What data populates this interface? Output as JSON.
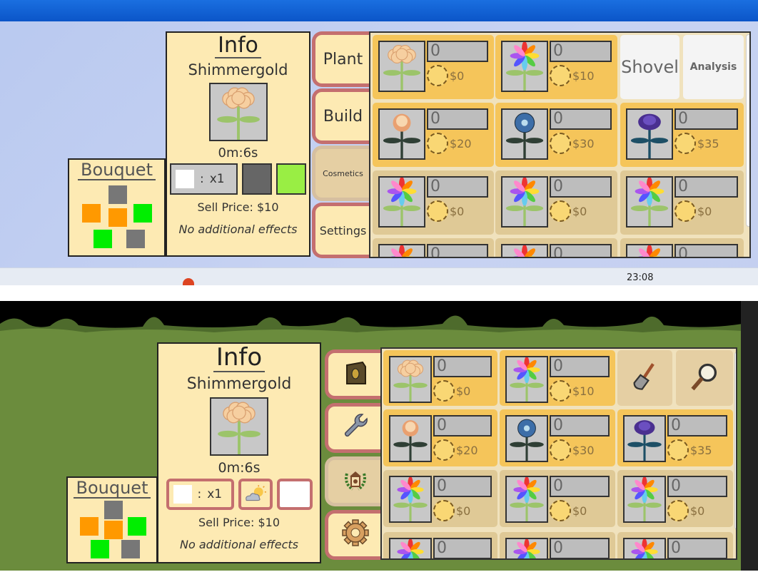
{
  "taskbar": {
    "clock": "23:08"
  },
  "panels": [
    {
      "variant": "old",
      "bouquet": {
        "title": "Bouquet"
      },
      "info": {
        "title": "Info",
        "flower_name": "Shimmergold",
        "grow_time": "0m:6s",
        "quantity": "x1",
        "quantity_sep": ":",
        "sell_price": "Sell Price: $10",
        "effects": "No additional effects",
        "slot_colors": [
          "#ffffff",
          "#666666",
          "#99ee44"
        ]
      },
      "tabs": [
        {
          "label": "Plant",
          "icon": "seed-bag-icon"
        },
        {
          "label": "Build",
          "icon": "wrench-icon"
        },
        {
          "label": "Cosmetics",
          "icon": "lantern-wreath-icon"
        },
        {
          "label": "Settings",
          "icon": "gear-icon"
        }
      ],
      "tools": [
        {
          "label": "Shovel",
          "icon": "shovel-icon"
        },
        {
          "label": "Analysis",
          "icon": "magnifier-icon"
        }
      ]
    },
    {
      "variant": "new",
      "bouquet": {
        "title": "Bouquet"
      },
      "info": {
        "title": "Info",
        "flower_name": "Shimmergold",
        "grow_time": "0m:6s",
        "quantity": "x1",
        "quantity_sep": ":",
        "sell_price": "Sell Price: $10",
        "effects": "No additional effects",
        "slot_icons": [
          "white-swatch",
          "weather-partly-sunny-icon",
          "empty-slot"
        ]
      },
      "tabs": [
        {
          "label": "",
          "icon": "seed-bag-icon"
        },
        {
          "label": "",
          "icon": "wrench-icon"
        },
        {
          "label": "",
          "icon": "lantern-wreath-icon"
        },
        {
          "label": "",
          "icon": "gear-icon"
        }
      ],
      "tools": [
        {
          "label": "",
          "icon": "shovel-icon"
        },
        {
          "label": "",
          "icon": "magnifier-icon"
        }
      ]
    }
  ],
  "bouquet_squares": [
    "#777777",
    "#ff9900",
    "#ff9900",
    "#00ee00",
    "#00ee00",
    "#777777"
  ],
  "seeds": [
    {
      "flower": "shimmergold",
      "count": "0",
      "price": "$0",
      "unlocked": true
    },
    {
      "flower": "rainbow",
      "count": "0",
      "price": "$10",
      "unlocked": true
    },
    {
      "flower": "peach-rose",
      "count": "0",
      "price": "$20",
      "unlocked": true
    },
    {
      "flower": "blue-daisy",
      "count": "0",
      "price": "$30",
      "unlocked": true
    },
    {
      "flower": "purple-rose",
      "count": "0",
      "price": "$35",
      "unlocked": true
    },
    {
      "flower": "rainbow",
      "count": "0",
      "price": "$0",
      "unlocked": false
    },
    {
      "flower": "rainbow",
      "count": "0",
      "price": "$0",
      "unlocked": false
    },
    {
      "flower": "rainbow",
      "count": "0",
      "price": "$0",
      "unlocked": false
    },
    {
      "flower": "rainbow",
      "count": "0",
      "price": "",
      "unlocked": false
    },
    {
      "flower": "rainbow",
      "count": "0",
      "price": "",
      "unlocked": false
    },
    {
      "flower": "rainbow",
      "count": "0",
      "price": "",
      "unlocked": false
    }
  ],
  "colors": {
    "panel": "#fdeab3",
    "tab_border": "#c46f6f",
    "cell_on": "#f5c55a",
    "cell_off": "#dfc996",
    "grass": "#6b8c3d"
  }
}
